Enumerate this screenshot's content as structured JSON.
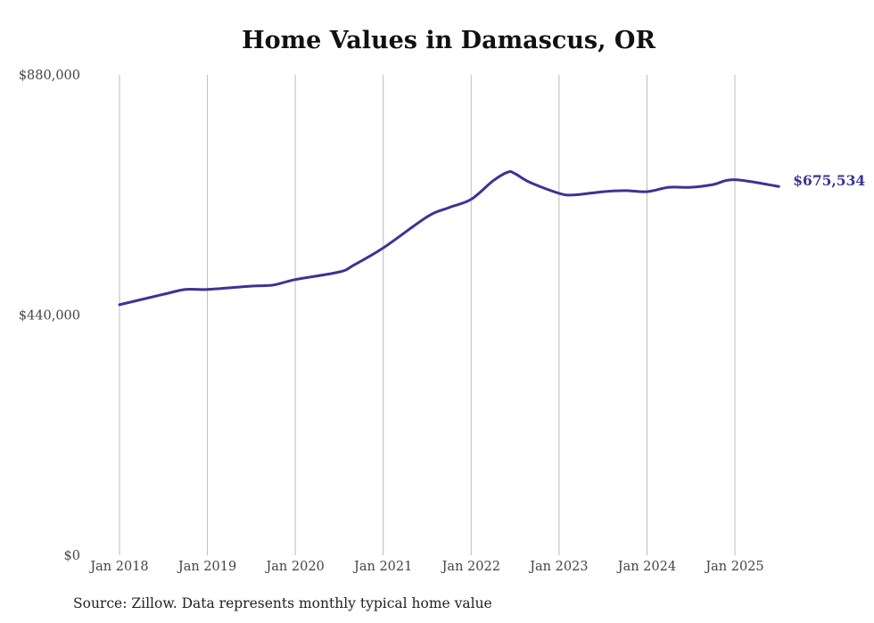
{
  "chart_data": {
    "type": "line",
    "title": "Home Values in Damascus, OR",
    "xlabel": "",
    "ylabel": "",
    "source": "Source: Zillow. Data represents monthly typical home value",
    "ylim": [
      0,
      880000
    ],
    "yticks": [
      "$0",
      "$440,000",
      "$880,000"
    ],
    "ytick_values": [
      0,
      440000,
      880000
    ],
    "xticks": [
      "Jan 2018",
      "Jan 2019",
      "Jan 2020",
      "Jan 2021",
      "Jan 2022",
      "Jan 2023",
      "Jan 2024",
      "Jan 2025"
    ],
    "xtick_values": [
      2018,
      2019,
      2020,
      2021,
      2022,
      2023,
      2024,
      2025
    ],
    "grid": "vertical",
    "line_color": "#3a3494",
    "end_label": "$675,534",
    "series": [
      {
        "name": "Typical home value",
        "x": [
          2018.0,
          2018.5,
          2018.75,
          2019.0,
          2019.5,
          2019.75,
          2020.0,
          2020.5,
          2020.67,
          2021.0,
          2021.5,
          2021.75,
          2022.0,
          2022.25,
          2022.42,
          2022.5,
          2022.67,
          2023.0,
          2023.17,
          2023.5,
          2023.75,
          2024.0,
          2024.25,
          2024.5,
          2024.75,
          2025.0,
          2025.5
        ],
        "values": [
          459000,
          478000,
          487000,
          487000,
          493000,
          495000,
          505000,
          519000,
          532000,
          563000,
          620000,
          637000,
          652000,
          686000,
          702000,
          699000,
          683000,
          663000,
          660000,
          666000,
          668000,
          666000,
          674000,
          674000,
          679000,
          688000,
          675534
        ]
      }
    ]
  }
}
